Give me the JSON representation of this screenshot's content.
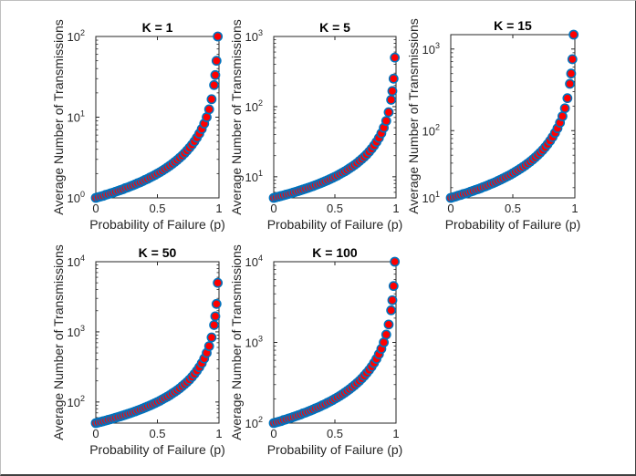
{
  "figure": {
    "background": "#ffffff",
    "marker_face_color": "#ff0000",
    "marker_edge_color": "#0072bd"
  },
  "chart_data": [
    {
      "type": "scatter",
      "title": "K = 1",
      "xlabel": "Probability of Failure (p)",
      "ylabel": "Average Number of Transmissions",
      "K": 1,
      "xlim": [
        0,
        1
      ],
      "ylim": [
        1,
        100
      ],
      "yscale": "log",
      "xticks": [
        "0",
        "0.5",
        "1"
      ],
      "yticks": [
        {
          "base": "10",
          "exp": "0"
        },
        {
          "base": "10",
          "exp": "1"
        },
        {
          "base": "10",
          "exp": "2"
        }
      ],
      "x": [
        0,
        0.02,
        0.04,
        0.06,
        0.08,
        0.1,
        0.12,
        0.14,
        0.16,
        0.18,
        0.2,
        0.22,
        0.24,
        0.26,
        0.28,
        0.3,
        0.32,
        0.34,
        0.36,
        0.38,
        0.4,
        0.42,
        0.44,
        0.46,
        0.48,
        0.5,
        0.52,
        0.54,
        0.56,
        0.58,
        0.6,
        0.62,
        0.64,
        0.66,
        0.68,
        0.7,
        0.72,
        0.74,
        0.76,
        0.78,
        0.8,
        0.82,
        0.84,
        0.86,
        0.88,
        0.9,
        0.92,
        0.94,
        0.96,
        0.97,
        0.98,
        0.99
      ],
      "y": [
        1,
        1.02,
        1.04,
        1.06,
        1.09,
        1.11,
        1.14,
        1.16,
        1.19,
        1.22,
        1.25,
        1.28,
        1.32,
        1.35,
        1.39,
        1.43,
        1.47,
        1.52,
        1.56,
        1.61,
        1.67,
        1.72,
        1.79,
        1.85,
        1.92,
        2,
        2.08,
        2.17,
        2.27,
        2.38,
        2.5,
        2.63,
        2.78,
        2.94,
        3.13,
        3.33,
        3.57,
        3.85,
        4.17,
        4.55,
        5,
        5.56,
        6.25,
        7.14,
        8.33,
        10,
        12.5,
        16.7,
        25,
        33.3,
        50,
        100
      ]
    },
    {
      "type": "scatter",
      "title": "K = 5",
      "xlabel": "Probability of Failure (p)",
      "ylabel": "Average Number of Transmissions",
      "K": 5,
      "xlim": [
        0,
        1
      ],
      "ylim": [
        5,
        1000
      ],
      "yscale": "log",
      "xticks": [
        "0",
        "0.5",
        "1"
      ],
      "yticks": [
        {
          "base": "10",
          "exp": "1"
        },
        {
          "base": "10",
          "exp": "2"
        },
        {
          "base": "10",
          "exp": "3"
        }
      ],
      "x": [
        0,
        0.02,
        0.04,
        0.06,
        0.08,
        0.1,
        0.12,
        0.14,
        0.16,
        0.18,
        0.2,
        0.22,
        0.24,
        0.26,
        0.28,
        0.3,
        0.32,
        0.34,
        0.36,
        0.38,
        0.4,
        0.42,
        0.44,
        0.46,
        0.48,
        0.5,
        0.52,
        0.54,
        0.56,
        0.58,
        0.6,
        0.62,
        0.64,
        0.66,
        0.68,
        0.7,
        0.72,
        0.74,
        0.76,
        0.78,
        0.8,
        0.82,
        0.84,
        0.86,
        0.88,
        0.9,
        0.92,
        0.94,
        0.96,
        0.97,
        0.98,
        0.99
      ],
      "y": [
        5,
        5.1,
        5.21,
        5.32,
        5.43,
        5.56,
        5.68,
        5.81,
        5.95,
        6.1,
        6.25,
        6.41,
        6.58,
        6.76,
        6.94,
        7.14,
        7.35,
        7.58,
        7.81,
        8.06,
        8.33,
        8.62,
        8.93,
        9.26,
        9.62,
        10,
        10.4,
        10.9,
        11.4,
        11.9,
        12.5,
        13.2,
        13.9,
        14.7,
        15.6,
        16.7,
        17.9,
        19.2,
        20.8,
        22.7,
        25,
        27.8,
        31.3,
        35.7,
        41.7,
        50,
        62.5,
        83.3,
        125,
        167,
        250,
        500
      ]
    },
    {
      "type": "scatter",
      "title": "K = 15",
      "xlabel": "Probability of Failure (p)",
      "ylabel": "Average Number of Transmissions",
      "K": 15,
      "xlim": [
        0,
        1
      ],
      "ylim": [
        15,
        1500
      ],
      "yscale": "log",
      "xticks": [
        "0",
        "0.5",
        "1"
      ],
      "yticks": [
        {
          "base": "10",
          "exp": "1"
        },
        {
          "base": "10",
          "exp": "2"
        },
        {
          "base": "10",
          "exp": "3"
        }
      ],
      "x": [
        0,
        0.02,
        0.04,
        0.06,
        0.08,
        0.1,
        0.12,
        0.14,
        0.16,
        0.18,
        0.2,
        0.22,
        0.24,
        0.26,
        0.28,
        0.3,
        0.32,
        0.34,
        0.36,
        0.38,
        0.4,
        0.42,
        0.44,
        0.46,
        0.48,
        0.5,
        0.52,
        0.54,
        0.56,
        0.58,
        0.6,
        0.62,
        0.64,
        0.66,
        0.68,
        0.7,
        0.72,
        0.74,
        0.76,
        0.78,
        0.8,
        0.82,
        0.84,
        0.86,
        0.88,
        0.9,
        0.92,
        0.94,
        0.96,
        0.97,
        0.98,
        0.99
      ],
      "y": [
        15,
        15.3,
        15.6,
        16,
        16.3,
        16.7,
        17,
        17.4,
        17.9,
        18.3,
        18.8,
        19.2,
        19.7,
        20.3,
        20.8,
        21.4,
        22.1,
        22.7,
        23.4,
        24.2,
        25,
        25.9,
        26.8,
        27.8,
        28.8,
        30,
        31.3,
        32.6,
        34.1,
        35.7,
        37.5,
        39.5,
        41.7,
        44.1,
        46.9,
        50,
        53.6,
        57.7,
        62.5,
        68.2,
        75,
        83.3,
        93.8,
        107,
        125,
        150,
        188,
        250,
        375,
        500,
        750,
        1500
      ]
    },
    {
      "type": "scatter",
      "title": "K = 50",
      "xlabel": "Probability of Failure (p)",
      "ylabel": "Average Number of Transmissions",
      "K": 50,
      "xlim": [
        0,
        1
      ],
      "ylim": [
        50,
        10000
      ],
      "yscale": "log",
      "xticks": [
        "0",
        "0.5",
        "1"
      ],
      "yticks": [
        {
          "base": "10",
          "exp": "2"
        },
        {
          "base": "10",
          "exp": "3"
        },
        {
          "base": "10",
          "exp": "4"
        }
      ],
      "x": [
        0,
        0.02,
        0.04,
        0.06,
        0.08,
        0.1,
        0.12,
        0.14,
        0.16,
        0.18,
        0.2,
        0.22,
        0.24,
        0.26,
        0.28,
        0.3,
        0.32,
        0.34,
        0.36,
        0.38,
        0.4,
        0.42,
        0.44,
        0.46,
        0.48,
        0.5,
        0.52,
        0.54,
        0.56,
        0.58,
        0.6,
        0.62,
        0.64,
        0.66,
        0.68,
        0.7,
        0.72,
        0.74,
        0.76,
        0.78,
        0.8,
        0.82,
        0.84,
        0.86,
        0.88,
        0.9,
        0.92,
        0.94,
        0.96,
        0.97,
        0.98,
        0.99
      ],
      "y": [
        50,
        51,
        52.1,
        53.2,
        54.3,
        55.6,
        56.8,
        58.1,
        59.5,
        61,
        62.5,
        64.1,
        65.8,
        67.6,
        69.4,
        71.4,
        73.5,
        75.8,
        78.1,
        80.6,
        83.3,
        86.2,
        89.3,
        92.6,
        96.2,
        100,
        104,
        109,
        114,
        119,
        125,
        132,
        139,
        147,
        156,
        167,
        179,
        192,
        208,
        227,
        250,
        278,
        313,
        357,
        417,
        500,
        625,
        833,
        1250,
        1667,
        2500,
        5000
      ]
    },
    {
      "type": "scatter",
      "title": "K = 100",
      "xlabel": "Probability of Failure (p)",
      "ylabel": "Average Number of Transmissions",
      "K": 100,
      "xlim": [
        0,
        1
      ],
      "ylim": [
        100,
        10000
      ],
      "yscale": "log",
      "xticks": [
        "0",
        "0.5",
        "1"
      ],
      "yticks": [
        {
          "base": "10",
          "exp": "2"
        },
        {
          "base": "10",
          "exp": "3"
        },
        {
          "base": "10",
          "exp": "4"
        }
      ],
      "x": [
        0,
        0.02,
        0.04,
        0.06,
        0.08,
        0.1,
        0.12,
        0.14,
        0.16,
        0.18,
        0.2,
        0.22,
        0.24,
        0.26,
        0.28,
        0.3,
        0.32,
        0.34,
        0.36,
        0.38,
        0.4,
        0.42,
        0.44,
        0.46,
        0.48,
        0.5,
        0.52,
        0.54,
        0.56,
        0.58,
        0.6,
        0.62,
        0.64,
        0.66,
        0.68,
        0.7,
        0.72,
        0.74,
        0.76,
        0.78,
        0.8,
        0.82,
        0.84,
        0.86,
        0.88,
        0.9,
        0.92,
        0.94,
        0.96,
        0.97,
        0.98,
        0.99
      ],
      "y": [
        100,
        102,
        104,
        106,
        109,
        111,
        114,
        116,
        119,
        122,
        125,
        128,
        132,
        135,
        139,
        143,
        147,
        152,
        156,
        161,
        167,
        172,
        179,
        185,
        192,
        200,
        208,
        217,
        227,
        238,
        250,
        263,
        278,
        294,
        313,
        333,
        357,
        385,
        417,
        455,
        500,
        556,
        625,
        714,
        833,
        1000,
        1250,
        1667,
        2500,
        3333,
        5000,
        10000
      ]
    }
  ]
}
